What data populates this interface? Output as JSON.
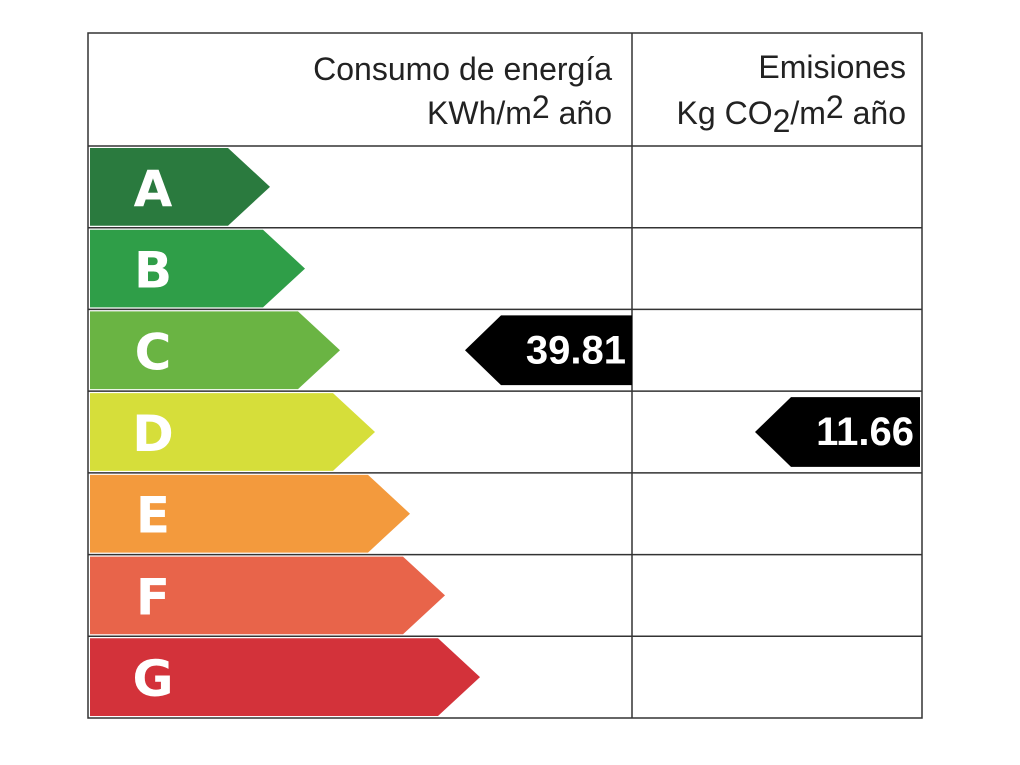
{
  "header": {
    "energy_title": "Consumo de energía",
    "energy_unit": [
      "KWh/m",
      "2",
      " año"
    ],
    "emissions_title": "Emisiones",
    "emissions_unit": [
      "Kg CO",
      "2",
      "/m",
      "2",
      " año"
    ]
  },
  "ratings": [
    {
      "label": "A",
      "color": "#2a7a3e"
    },
    {
      "label": "B",
      "color": "#2f9e48"
    },
    {
      "label": "C",
      "color": "#6ab443"
    },
    {
      "label": "D",
      "color": "#d6de3a"
    },
    {
      "label": "E",
      "color": "#f39a3d"
    },
    {
      "label": "F",
      "color": "#e8644a"
    },
    {
      "label": "G",
      "color": "#d3323a"
    }
  ],
  "energy": {
    "value": 39.81,
    "rating": "C"
  },
  "emissions": {
    "value": 11.66,
    "rating": "D"
  }
}
